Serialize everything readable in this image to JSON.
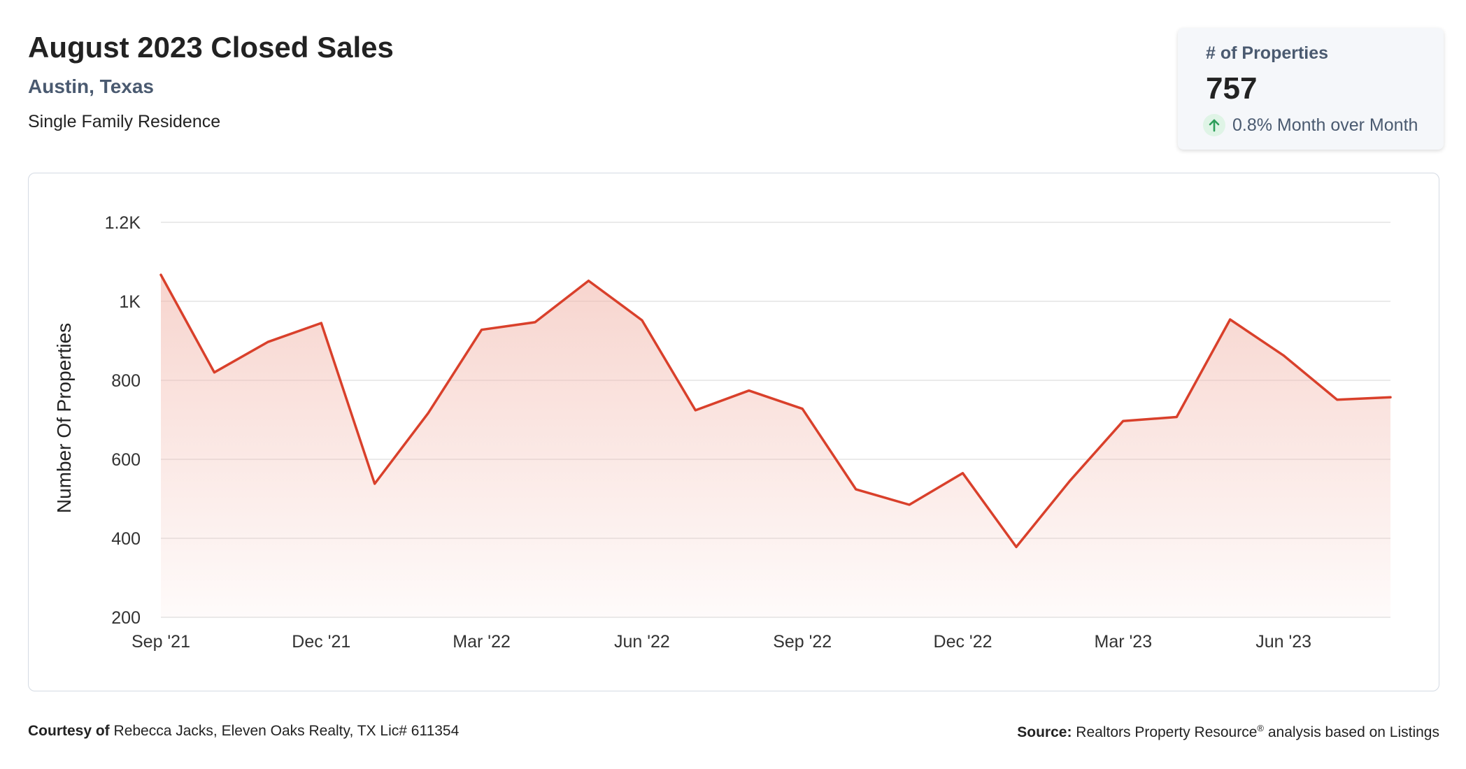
{
  "header": {
    "title": "August 2023 Closed Sales",
    "location": "Austin, Texas",
    "property_type": "Single Family Residence"
  },
  "stat_card": {
    "label": "# of Properties",
    "value": "757",
    "change_icon": "arrow-up-icon",
    "change_text": "0.8% Month over Month"
  },
  "footer": {
    "courtesy_label": "Courtesy of",
    "courtesy_text": "Rebecca Jacks, Eleven Oaks Realty, TX Lic# 611354",
    "source_label": "Source:",
    "source_text_a": "Realtors Property Resource",
    "source_sup": "®",
    "source_text_b": " analysis based on Listings"
  },
  "colors": {
    "line": "#d9402b",
    "fill": "#f2b8ad",
    "grid": "#e3e3e3",
    "title_text": "#222222",
    "subtitle_text": "#4a5a70",
    "up_arrow": "#2e9e5b"
  },
  "chart_data": {
    "type": "area",
    "ylabel": "Number Of Properties",
    "ylim": [
      200,
      1200
    ],
    "yticks": [
      200,
      400,
      600,
      800,
      1000,
      1200
    ],
    "ytick_labels": [
      "200",
      "400",
      "600",
      "800",
      "1K",
      "1.2K"
    ],
    "xtick_labels": [
      "Sep '21",
      "Dec '21",
      "Mar '22",
      "Jun '22",
      "Sep '22",
      "Dec '22",
      "Mar '23",
      "Jun '23"
    ],
    "grid": true,
    "x": [
      "Sep '21",
      "Oct '21",
      "Nov '21",
      "Dec '21",
      "Jan '22",
      "Feb '22",
      "Mar '22",
      "Apr '22",
      "May '22",
      "Jun '22",
      "Jul '22",
      "Aug '22",
      "Sep '22",
      "Oct '22",
      "Nov '22",
      "Dec '22",
      "Jan '23",
      "Feb '23",
      "Mar '23",
      "Apr '23",
      "May '23",
      "Jun '23",
      "Jul '23",
      "Aug '23"
    ],
    "series": [
      {
        "values": [
          1067,
          820,
          897,
          945,
          538,
          717,
          928,
          947,
          1052,
          952,
          724,
          774,
          728,
          524,
          485,
          565,
          378,
          545,
          697,
          707,
          954,
          863,
          751,
          757
        ]
      }
    ]
  }
}
